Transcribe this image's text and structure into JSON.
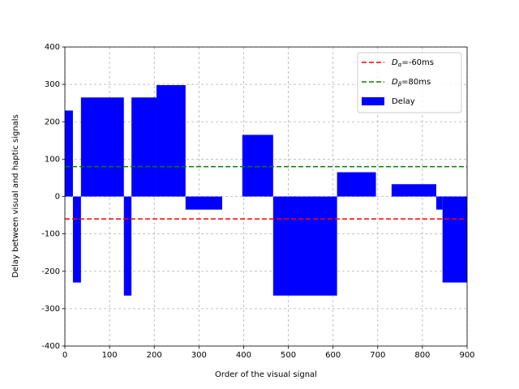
{
  "chart_data": {
    "type": "bar",
    "xlabel": "Order of the visual signal",
    "ylabel": "Delay between visual and haptic signals",
    "xlim": [
      0,
      900
    ],
    "xticks": [
      0,
      100,
      200,
      300,
      400,
      500,
      600,
      700,
      800,
      900
    ],
    "ylim": [
      -400,
      400
    ],
    "yticks": [
      -400,
      -300,
      -200,
      -100,
      0,
      100,
      200,
      300,
      400
    ],
    "grid": true,
    "legend": "upper right",
    "series": [
      {
        "name": "Delay",
        "color": "#0000ff",
        "x_start": [
          0,
          18,
          36,
          132,
          149,
          205,
          270,
          397,
          466,
          609,
          731,
          831,
          845
        ],
        "x_end": [
          18,
          36,
          132,
          149,
          205,
          270,
          352,
          466,
          609,
          696,
          831,
          845,
          900
        ],
        "values": [
          230,
          -230,
          265,
          -265,
          265,
          298,
          -35,
          165,
          -265,
          65,
          33,
          -35,
          -230
        ]
      }
    ],
    "lines": [
      {
        "symbol": "D",
        "subscript": "α",
        "name": "=-60ms",
        "value": -60,
        "color": "#ff0000"
      },
      {
        "symbol": "D",
        "subscript": "β",
        "name": "=80ms",
        "value": 80,
        "color": "#008000"
      }
    ]
  }
}
